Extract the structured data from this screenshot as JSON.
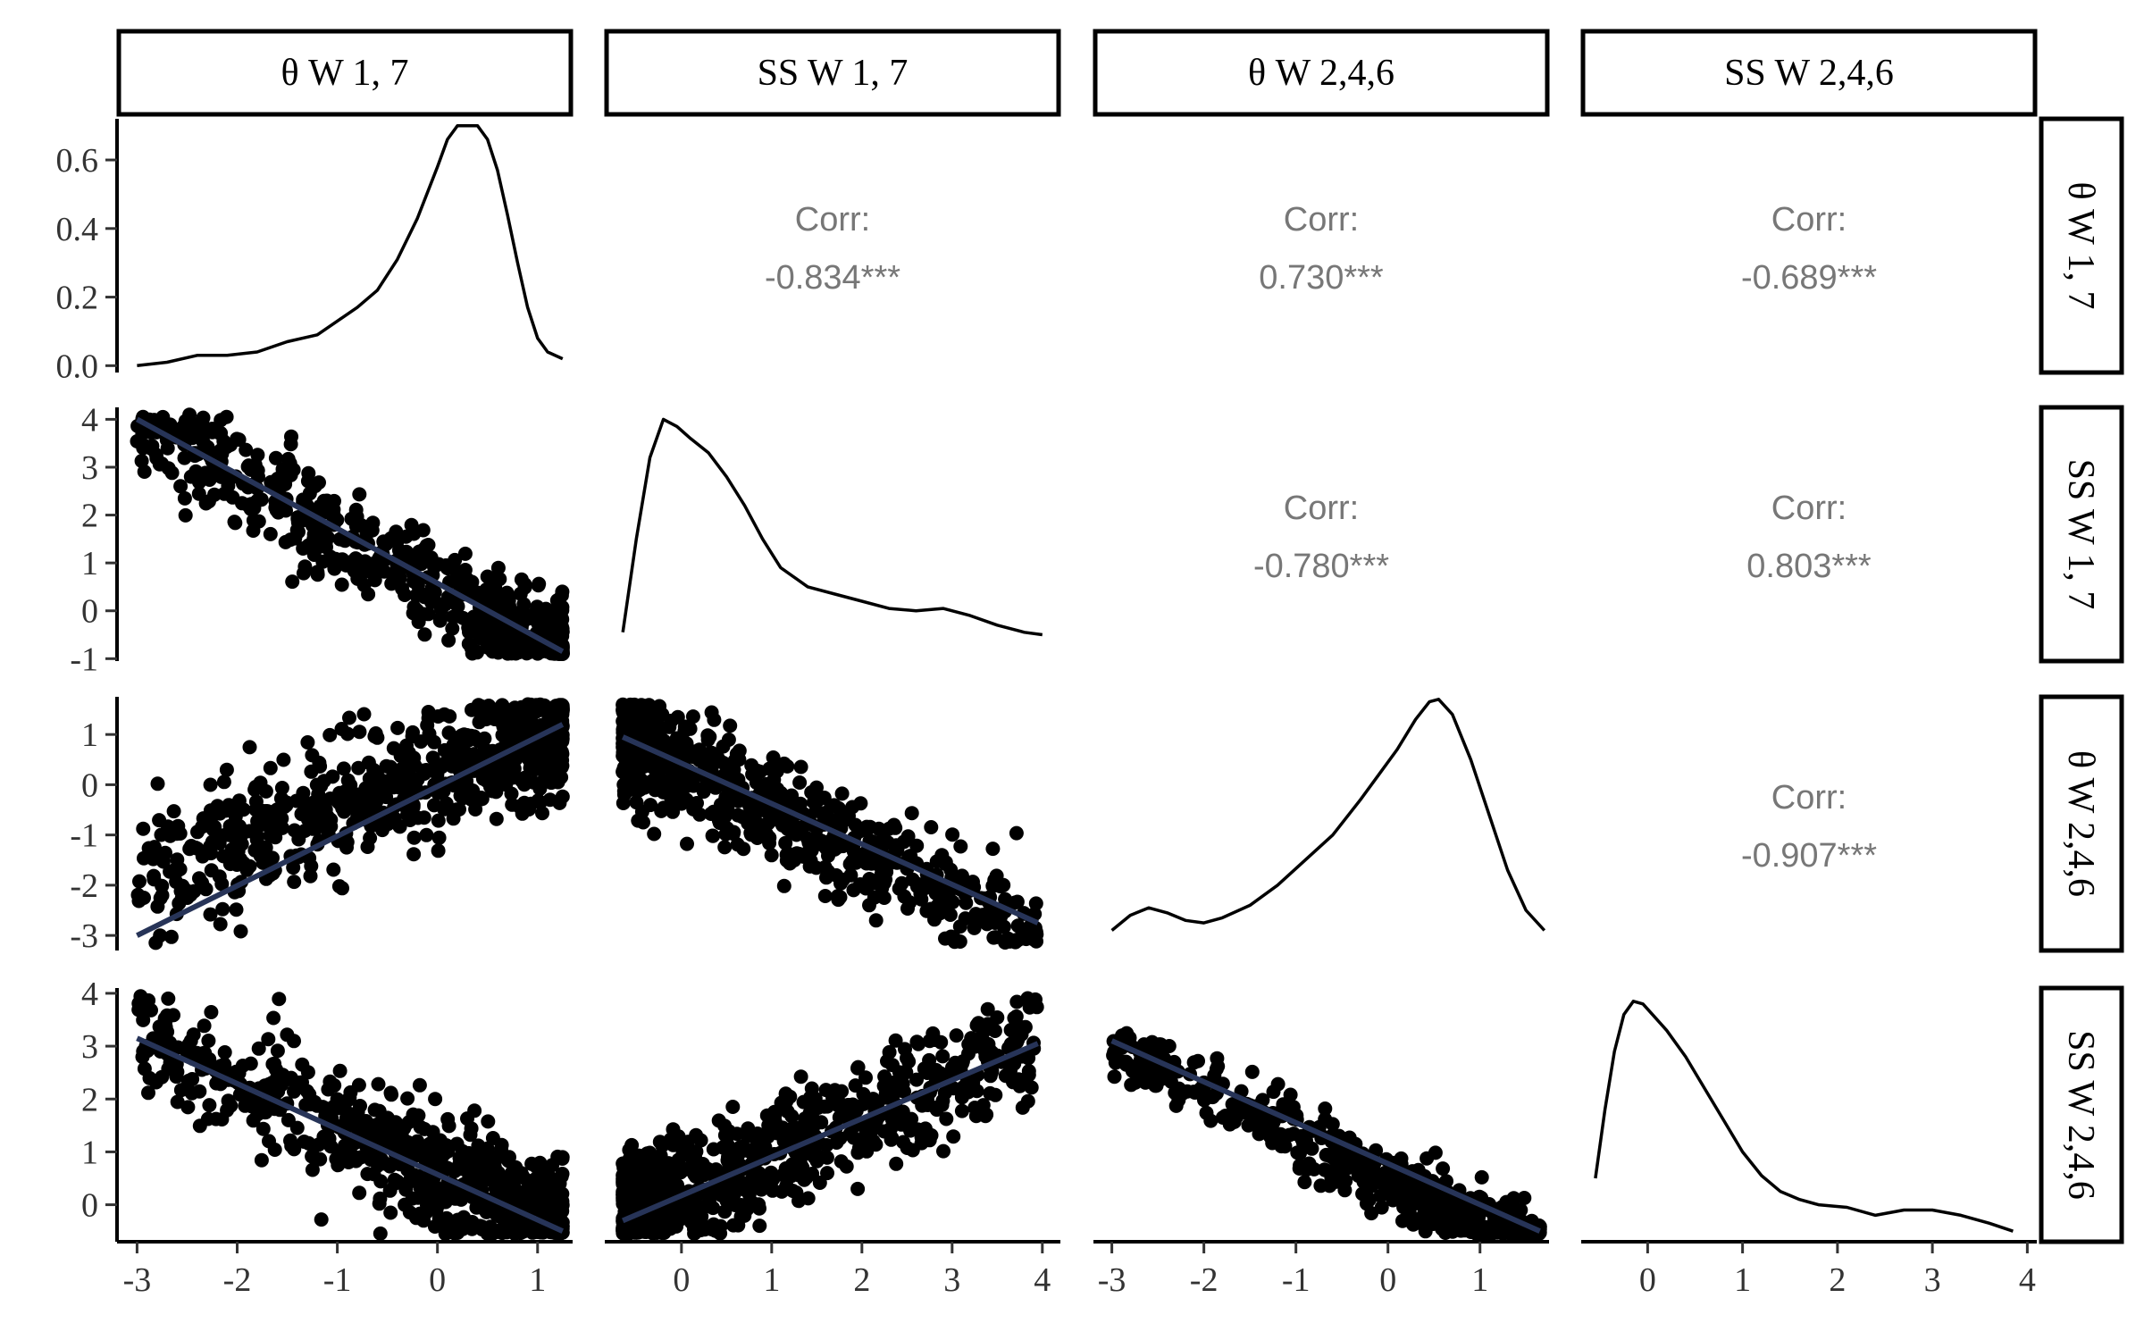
{
  "chart_data": {
    "type": "scatter",
    "title": "",
    "variables": [
      "θ W 1, 7",
      "SS W 1, 7",
      "θ W 2,4,6",
      "SS W 2,4,6"
    ],
    "column_strips": [
      "θ W 1, 7",
      "SS W 1, 7",
      "θ W 2,4,6",
      "SS W 2,4,6"
    ],
    "row_strips": [
      "θ W 1, 7",
      "SS W 1, 7",
      "θ W 2,4,6",
      "SS W 2,4,6"
    ],
    "x_ranges": [
      [
        -3.2,
        1.35
      ],
      [
        -0.85,
        4.2
      ],
      [
        -3.2,
        1.75
      ],
      [
        -0.7,
        4.1
      ]
    ],
    "row_ranges": [
      [
        -0.02,
        0.72
      ],
      [
        -1.05,
        4.25
      ],
      [
        -3.3,
        1.75
      ],
      [
        -0.7,
        4.1
      ]
    ],
    "x_ticks": [
      [
        "-3",
        "-2",
        "-1",
        "0",
        "1"
      ],
      [
        "0",
        "1",
        "2",
        "3",
        "4"
      ],
      [
        "-3",
        "-2",
        "-1",
        "0",
        "1"
      ],
      [
        "0",
        "1",
        "2",
        "3",
        "4"
      ]
    ],
    "y_ticks": [
      [
        "0.0",
        "0.2",
        "0.4",
        "0.6"
      ],
      [
        "-1",
        "0",
        "1",
        "2",
        "3",
        "4"
      ],
      [
        "-3",
        "-2",
        "-1",
        "0",
        "1"
      ],
      [
        "0",
        "1",
        "2",
        "3",
        "4"
      ]
    ],
    "corr_label": "Corr:",
    "correlations": [
      {
        "row": 0,
        "col": 1,
        "value": "-0.834***"
      },
      {
        "row": 0,
        "col": 2,
        "value": "0.730***"
      },
      {
        "row": 0,
        "col": 3,
        "value": "-0.689***"
      },
      {
        "row": 1,
        "col": 2,
        "value": "-0.780***"
      },
      {
        "row": 1,
        "col": 3,
        "value": "0.803***"
      },
      {
        "row": 2,
        "col": 3,
        "value": "-0.907***"
      }
    ],
    "densities": [
      {
        "x": [
          -3.0,
          -2.7,
          -2.4,
          -2.1,
          -1.8,
          -1.5,
          -1.2,
          -1.0,
          -0.8,
          -0.6,
          -0.4,
          -0.2,
          0.0,
          0.1,
          0.2,
          0.3,
          0.4,
          0.5,
          0.6,
          0.7,
          0.8,
          0.9,
          1.0,
          1.1,
          1.25
        ],
        "y": [
          0.0,
          0.01,
          0.03,
          0.03,
          0.04,
          0.07,
          0.09,
          0.13,
          0.17,
          0.22,
          0.31,
          0.43,
          0.58,
          0.66,
          0.7,
          0.7,
          0.7,
          0.66,
          0.57,
          0.44,
          0.3,
          0.17,
          0.08,
          0.04,
          0.02
        ]
      },
      {
        "x": [
          -0.65,
          -0.5,
          -0.35,
          -0.2,
          -0.05,
          0.1,
          0.3,
          0.5,
          0.7,
          0.9,
          1.1,
          1.4,
          1.7,
          2.0,
          2.3,
          2.6,
          2.9,
          3.2,
          3.5,
          3.8,
          4.0
        ],
        "y": [
          -0.45,
          1.5,
          3.2,
          4.0,
          3.85,
          3.6,
          3.3,
          2.8,
          2.2,
          1.5,
          0.9,
          0.5,
          0.35,
          0.2,
          0.05,
          0.0,
          0.05,
          -0.1,
          -0.3,
          -0.45,
          -0.5
        ]
      },
      {
        "x": [
          -3.0,
          -2.8,
          -2.6,
          -2.4,
          -2.2,
          -2.0,
          -1.8,
          -1.5,
          -1.2,
          -0.9,
          -0.6,
          -0.3,
          -0.1,
          0.1,
          0.3,
          0.45,
          0.55,
          0.7,
          0.9,
          1.1,
          1.3,
          1.5,
          1.7
        ],
        "y": [
          -2.9,
          -2.6,
          -2.45,
          -2.55,
          -2.7,
          -2.75,
          -2.65,
          -2.4,
          -2.0,
          -1.5,
          -1.0,
          -0.3,
          0.2,
          0.7,
          1.3,
          1.65,
          1.7,
          1.4,
          0.5,
          -0.6,
          -1.7,
          -2.5,
          -2.9
        ]
      },
      {
        "x": [
          -0.55,
          -0.45,
          -0.35,
          -0.25,
          -0.15,
          -0.05,
          0.05,
          0.2,
          0.4,
          0.6,
          0.8,
          1.0,
          1.2,
          1.4,
          1.6,
          1.8,
          2.1,
          2.4,
          2.7,
          3.0,
          3.3,
          3.6,
          3.85
        ],
        "y": [
          0.5,
          1.8,
          2.9,
          3.6,
          3.85,
          3.8,
          3.6,
          3.3,
          2.8,
          2.2,
          1.6,
          1.0,
          0.55,
          0.25,
          0.1,
          0.0,
          -0.05,
          -0.2,
          -0.1,
          -0.1,
          -0.2,
          -0.35,
          -0.5
        ]
      }
    ],
    "scatter_panels": [
      {
        "row": 1,
        "col": 0,
        "n": 650,
        "x_range": [
          -3.0,
          1.25
        ],
        "intercept": 0.46,
        "slope": -1.18,
        "noise": 0.55,
        "x_skew": "left",
        "fit": [
          [
            -3.0,
            4.0
          ],
          [
            1.25,
            -0.85
          ]
        ]
      },
      {
        "row": 2,
        "col": 0,
        "n": 700,
        "x_range": [
          -3.0,
          1.25
        ],
        "intercept": 0.28,
        "slope": 0.73,
        "noise": 0.65,
        "x_skew": "left",
        "fit": [
          [
            -3.0,
            -3.0
          ],
          [
            1.25,
            1.2
          ]
        ]
      },
      {
        "row": 3,
        "col": 0,
        "n": 700,
        "x_range": [
          -3.0,
          1.25
        ],
        "intercept": 0.6,
        "slope": -0.85,
        "noise": 0.6,
        "x_skew": "left",
        "fit": [
          [
            -3.0,
            3.15
          ],
          [
            1.25,
            -0.5
          ]
        ]
      },
      {
        "row": 2,
        "col": 1,
        "n": 700,
        "x_range": [
          -0.65,
          3.95
        ],
        "intercept": 0.35,
        "slope": -0.82,
        "noise": 0.55,
        "x_skew": "right",
        "fit": [
          [
            -0.65,
            0.95
          ],
          [
            3.95,
            -2.75
          ]
        ]
      },
      {
        "row": 3,
        "col": 1,
        "n": 750,
        "x_range": [
          -0.65,
          3.95
        ],
        "intercept": 0.2,
        "slope": 0.72,
        "noise": 0.55,
        "x_skew": "right",
        "fit": [
          [
            -0.65,
            -0.3
          ],
          [
            3.95,
            3.05
          ]
        ]
      },
      {
        "row": 3,
        "col": 2,
        "n": 700,
        "x_range": [
          -3.0,
          1.65
        ],
        "intercept": 0.45,
        "slope": -0.84,
        "noise": 0.3,
        "x_skew": "left",
        "fit": [
          [
            -3.0,
            3.1
          ],
          [
            1.65,
            -0.5
          ]
        ]
      }
    ],
    "point_color": "#000000",
    "fit_color": "#273458",
    "density_color": "#000000"
  }
}
